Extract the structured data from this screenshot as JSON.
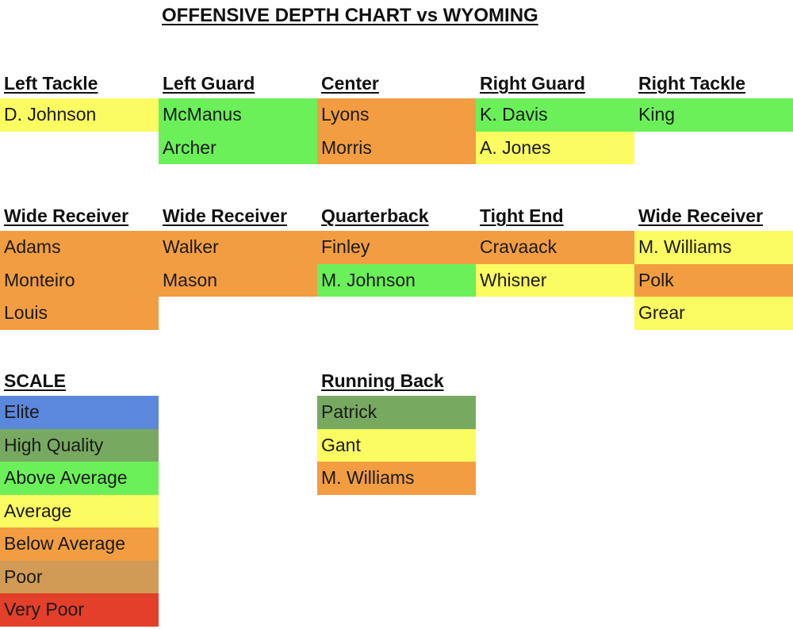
{
  "title": "OFFENSIVE DEPTH CHART vs WYOMING",
  "scale_colors": {
    "Elite": "#5b87dc",
    "High Quality": "#78a960",
    "Above Average": "#6bf05a",
    "Average": "#fbfb62",
    "Below Average": "#f29d42",
    "Poor": "#d19a55",
    "Very Poor": "#e43f2a"
  },
  "offensive_line": [
    {
      "position": "Left Tackle",
      "players": [
        {
          "name": "D. Johnson",
          "rating": "Average"
        }
      ]
    },
    {
      "position": "Left Guard",
      "players": [
        {
          "name": "McManus",
          "rating": "Above Average"
        },
        {
          "name": "Archer",
          "rating": "Above Average"
        }
      ]
    },
    {
      "position": "Center",
      "players": [
        {
          "name": "Lyons",
          "rating": "Below Average"
        },
        {
          "name": "Morris",
          "rating": "Below Average"
        }
      ]
    },
    {
      "position": "Right Guard",
      "players": [
        {
          "name": "K. Davis",
          "rating": "Above Average"
        },
        {
          "name": "A. Jones",
          "rating": "Average"
        }
      ]
    },
    {
      "position": "Right Tackle",
      "players": [
        {
          "name": "King",
          "rating": "Above Average"
        }
      ]
    }
  ],
  "skill_positions": [
    {
      "position": "Wide Receiver",
      "players": [
        {
          "name": "Adams",
          "rating": "Below Average"
        },
        {
          "name": "Monteiro",
          "rating": "Below Average"
        },
        {
          "name": "Louis",
          "rating": "Below Average"
        }
      ]
    },
    {
      "position": "Wide Receiver",
      "players": [
        {
          "name": "Walker",
          "rating": "Below Average"
        },
        {
          "name": "Mason",
          "rating": "Below Average"
        }
      ]
    },
    {
      "position": "Quarterback",
      "players": [
        {
          "name": "Finley",
          "rating": "Below Average"
        },
        {
          "name": "M. Johnson",
          "rating": "Above Average"
        }
      ]
    },
    {
      "position": "Tight End",
      "players": [
        {
          "name": "Cravaack",
          "rating": "Below Average"
        },
        {
          "name": "Whisner",
          "rating": "Average"
        }
      ]
    },
    {
      "position": "Wide Receiver",
      "players": [
        {
          "name": "M. Williams",
          "rating": "Average"
        },
        {
          "name": "Polk",
          "rating": "Below Average"
        },
        {
          "name": "Grear",
          "rating": "Average"
        }
      ]
    }
  ],
  "scale": {
    "heading": "SCALE",
    "levels": [
      "Elite",
      "High Quality",
      "Above Average",
      "Average",
      "Below Average",
      "Poor",
      "Very Poor"
    ]
  },
  "running_back": {
    "position": "Running Back",
    "players": [
      {
        "name": "Patrick",
        "rating": "High Quality"
      },
      {
        "name": "Gant",
        "rating": "Average"
      },
      {
        "name": "M. Williams",
        "rating": "Below Average"
      }
    ]
  }
}
